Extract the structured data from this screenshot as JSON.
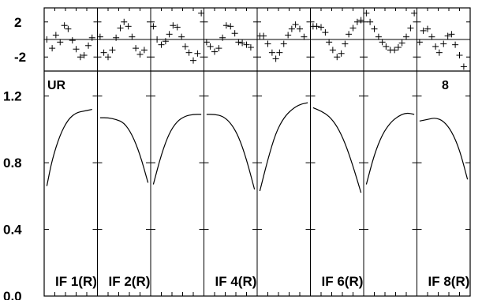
{
  "chart_data": {
    "type": "line",
    "station_label": "UR",
    "corner_number": "8",
    "residuals": {
      "yticks": [
        "2",
        "-2"
      ],
      "ylim": [
        -3.6,
        3.6
      ],
      "panels": [
        {
          "x": [
            0.05,
            0.15,
            0.22,
            0.3,
            0.38,
            0.45,
            0.53,
            0.6,
            0.68,
            0.75,
            0.83,
            0.9
          ],
          "y": [
            0.0,
            -1.0,
            0.5,
            -0.3,
            1.6,
            1.2,
            -0.1,
            -1.1,
            -2.0,
            -1.8,
            -0.7,
            0.2
          ]
        },
        {
          "x": [
            0.05,
            0.12,
            0.2,
            0.28,
            0.35,
            0.43,
            0.5,
            0.58,
            0.65,
            0.72,
            0.8,
            0.88
          ],
          "y": [
            0.3,
            -1.5,
            -2.0,
            -1.2,
            0.2,
            1.3,
            2.0,
            1.5,
            0.3,
            -1.0,
            -1.7,
            -1.2
          ]
        },
        {
          "x": [
            0.05,
            0.12,
            0.2,
            0.28,
            0.35,
            0.42,
            0.5,
            0.58,
            0.65,
            0.72,
            0.8,
            0.88,
            0.95
          ],
          "y": [
            1.5,
            0.0,
            -0.6,
            -0.2,
            0.6,
            1.6,
            1.4,
            0.3,
            -0.8,
            -1.5,
            -2.4,
            -1.6,
            3.0
          ]
        },
        {
          "x": [
            0.05,
            0.12,
            0.2,
            0.28,
            0.35,
            0.42,
            0.5,
            0.58,
            0.65,
            0.72,
            0.8,
            0.88
          ],
          "y": [
            -0.3,
            -0.8,
            -1.4,
            -1.0,
            0.2,
            1.6,
            1.5,
            0.7,
            -0.3,
            -0.4,
            -0.6,
            -0.9
          ]
        },
        {
          "x": [
            0.05,
            0.12,
            0.2,
            0.28,
            0.35,
            0.42,
            0.5,
            0.58,
            0.65,
            0.72,
            0.8,
            0.88
          ],
          "y": [
            0.4,
            0.4,
            -0.5,
            -1.5,
            -2.2,
            -1.5,
            -0.5,
            0.5,
            1.2,
            1.7,
            1.2,
            0.3
          ]
        },
        {
          "x": [
            0.05,
            0.12,
            0.2,
            0.28,
            0.35,
            0.42,
            0.5,
            0.58,
            0.65,
            0.72,
            0.8,
            0.88,
            0.95
          ],
          "y": [
            1.5,
            1.5,
            1.4,
            0.8,
            -0.3,
            -1.2,
            -2.0,
            -1.6,
            -0.5,
            0.6,
            1.3,
            2.0,
            2.2
          ]
        },
        {
          "x": [
            0.05,
            0.12,
            0.2,
            0.28,
            0.35,
            0.42,
            0.5,
            0.58,
            0.65,
            0.72,
            0.8,
            0.88,
            0.95
          ],
          "y": [
            3.0,
            2.0,
            1.2,
            0.3,
            -0.3,
            -0.8,
            -1.2,
            -1.2,
            -0.9,
            -0.4,
            0.3,
            1.3,
            3.0
          ]
        },
        {
          "x": [
            0.05,
            0.12,
            0.2,
            0.28,
            0.35,
            0.42,
            0.5,
            0.58,
            0.65,
            0.72,
            0.8,
            0.88
          ],
          "y": [
            -0.3,
            1.0,
            1.2,
            0.3,
            -0.8,
            -1.5,
            -0.5,
            0.4,
            0.6,
            -0.6,
            -1.8,
            -3.1
          ]
        }
      ]
    },
    "amplitude": {
      "yticks": [
        "1.2",
        "0.8",
        "0.4",
        "0.0"
      ],
      "ylim": [
        0.0,
        1.35
      ],
      "panels": [
        {
          "x": [
            0.05,
            0.15,
            0.3,
            0.45,
            0.6,
            0.75,
            0.9
          ],
          "y": [
            0.66,
            0.82,
            0.97,
            1.06,
            1.1,
            1.11,
            1.12
          ]
        },
        {
          "x": [
            0.05,
            0.2,
            0.35,
            0.5,
            0.65,
            0.8,
            0.95
          ],
          "y": [
            1.07,
            1.07,
            1.06,
            1.04,
            0.97,
            0.85,
            0.68
          ]
        },
        {
          "x": [
            0.05,
            0.2,
            0.35,
            0.5,
            0.65,
            0.8,
            0.95
          ],
          "y": [
            0.67,
            0.85,
            0.98,
            1.05,
            1.08,
            1.09,
            1.09
          ]
        },
        {
          "x": [
            0.05,
            0.2,
            0.35,
            0.5,
            0.65,
            0.8,
            0.95
          ],
          "y": [
            1.09,
            1.09,
            1.08,
            1.04,
            0.96,
            0.82,
            0.64
          ]
        },
        {
          "x": [
            0.05,
            0.2,
            0.35,
            0.5,
            0.65,
            0.8,
            0.95
          ],
          "y": [
            0.63,
            0.82,
            0.98,
            1.07,
            1.12,
            1.15,
            1.16
          ]
        },
        {
          "x": [
            0.05,
            0.2,
            0.35,
            0.5,
            0.65,
            0.8,
            0.95
          ],
          "y": [
            1.13,
            1.11,
            1.08,
            1.02,
            0.92,
            0.78,
            0.62
          ]
        },
        {
          "x": [
            0.05,
            0.2,
            0.35,
            0.5,
            0.65,
            0.8,
            0.95
          ],
          "y": [
            0.67,
            0.85,
            0.97,
            1.04,
            1.08,
            1.1,
            1.09
          ]
        },
        {
          "x": [
            0.05,
            0.2,
            0.35,
            0.5,
            0.65,
            0.8,
            0.95
          ],
          "y": [
            1.05,
            1.06,
            1.07,
            1.05,
            0.99,
            0.88,
            0.7
          ]
        }
      ]
    },
    "panel_labels": [
      "IF 1(R)",
      "IF 2(R)",
      "",
      "IF 4(R)",
      "",
      "IF 6(R)",
      "",
      "IF 8(R)"
    ]
  }
}
